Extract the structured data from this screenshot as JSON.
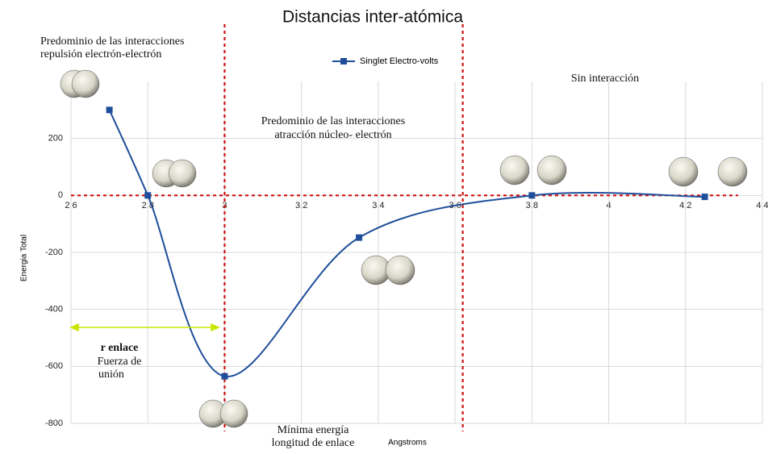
{
  "chart_data": {
    "type": "line",
    "title": "Distancias inter-atómica",
    "x_label": "Angstroms",
    "y_label": "Energia Total",
    "series": [
      {
        "name": "Singlet Electro-volts",
        "color": "#1f4e9a",
        "x": [
          2.7,
          2.8,
          3.0,
          3.35,
          3.8,
          4.25
        ],
        "values": [
          300,
          0,
          -635,
          -148,
          0,
          -5
        ]
      }
    ],
    "xlim": [
      2.6,
      4.4
    ],
    "xticks": [
      2.6,
      2.8,
      3,
      3.2,
      3.4,
      3.6,
      3.8,
      4,
      4.2,
      4.4
    ],
    "ylim": [
      -800,
      400
    ],
    "yticks": [
      -800,
      -600,
      -400,
      -200,
      0,
      200
    ],
    "grid": true,
    "legend": "top",
    "reference_lines": {
      "x": [
        3.0,
        3.62
      ],
      "y": [
        0
      ],
      "color": "#d01010"
    },
    "annotations": [
      "Predominio de las interacciones",
      "repulsión electrón-electrón",
      "Predominio de las interacciones",
      "atracción  núcleo- electrón",
      "Sin interacción",
      "r enlace",
      "Fuerza de",
      "unión",
      "Mínima energía",
      "longitud de enlace"
    ]
  }
}
